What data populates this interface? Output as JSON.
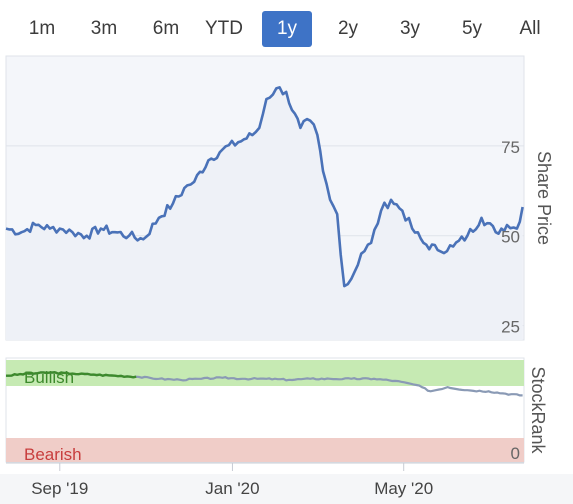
{
  "range_selector": {
    "buttons": [
      {
        "label": "1m",
        "active": false
      },
      {
        "label": "3m",
        "active": false
      },
      {
        "label": "6m",
        "active": false
      },
      {
        "label": "YTD",
        "active": false
      },
      {
        "label": "1y",
        "active": true
      },
      {
        "label": "2y",
        "active": false
      },
      {
        "label": "3y",
        "active": false
      },
      {
        "label": "5y",
        "active": false
      },
      {
        "label": "All",
        "active": false
      }
    ]
  },
  "colors": {
    "line": "#4a72b8",
    "panel_fill": "#f4f6fa",
    "grid": "#dfe3ea",
    "bullish_band": "#c6eab3",
    "bearish_band": "#f0cdc8",
    "bullish_text": "#3d8a2c",
    "bearish_text": "#c83e3e",
    "stockrank_line": "#8a9ab5",
    "active_button": "#3e73c6"
  },
  "chart_data": {
    "type": "line",
    "price_panel": {
      "ylabel": "Share Price",
      "yticks": [
        25,
        50,
        75
      ],
      "ylim": [
        21,
        100
      ],
      "x": [
        "2019-07-25",
        "2019-08-05",
        "2019-08-15",
        "2019-08-25",
        "2019-09-01",
        "2019-09-10",
        "2019-09-20",
        "2019-09-30",
        "2019-10-10",
        "2019-10-20",
        "2019-10-30",
        "2019-11-10",
        "2019-11-20",
        "2019-11-30",
        "2019-12-05",
        "2019-12-15",
        "2019-12-25",
        "2020-01-05",
        "2020-01-15",
        "2020-01-20",
        "2020-01-25",
        "2020-02-01",
        "2020-02-08",
        "2020-02-12",
        "2020-02-18",
        "2020-02-25",
        "2020-03-01",
        "2020-03-05",
        "2020-03-10",
        "2020-03-15",
        "2020-03-20",
        "2020-03-25",
        "2020-04-01",
        "2020-04-08",
        "2020-04-15",
        "2020-04-22",
        "2020-04-30",
        "2020-05-07",
        "2020-05-15",
        "2020-05-25",
        "2020-06-05",
        "2020-06-15",
        "2020-06-25",
        "2020-07-05",
        "2020-07-13",
        "2020-07-20",
        "2020-07-24"
      ],
      "values": [
        52,
        51,
        53,
        52,
        52,
        51,
        50,
        52,
        51,
        50,
        49,
        55,
        59,
        64,
        65,
        71,
        74,
        76,
        78,
        80,
        88,
        91,
        90,
        85,
        80,
        82,
        78,
        68,
        60,
        56,
        36,
        38,
        45,
        48,
        57,
        60,
        57,
        52,
        48,
        46,
        47,
        50,
        55,
        51,
        53,
        52,
        58
      ]
    },
    "stockrank_panel": {
      "ylabel": "StockRank",
      "band_labels": {
        "top": "Bullish",
        "bottom": "Bearish"
      },
      "ytick": 0,
      "ylim": [
        0,
        100
      ],
      "x": [
        "2019-07-25",
        "2019-08-10",
        "2019-08-25",
        "2019-09-10",
        "2019-09-25",
        "2019-10-10",
        "2019-10-25",
        "2019-11-10",
        "2019-11-25",
        "2019-12-10",
        "2019-12-25",
        "2020-01-10",
        "2020-01-25",
        "2020-02-10",
        "2020-02-25",
        "2020-03-10",
        "2020-03-25",
        "2020-04-10",
        "2020-04-25",
        "2020-05-10",
        "2020-05-20",
        "2020-06-01",
        "2020-06-15",
        "2020-06-30",
        "2020-07-10",
        "2020-07-24"
      ],
      "values": [
        83,
        85,
        86,
        85,
        84,
        83,
        82,
        80,
        79,
        80,
        81,
        80,
        80,
        79,
        80,
        80,
        80,
        80,
        78,
        74,
        68,
        72,
        69,
        68,
        66,
        64
      ],
      "bullish_until": "2019-10-25"
    },
    "xaxis": {
      "ticks": [
        "Sep '19",
        "Jan '20",
        "May '20"
      ],
      "tick_dates": [
        "2019-09-01",
        "2020-01-01",
        "2020-05-01"
      ],
      "range": [
        "2019-07-25",
        "2020-07-25"
      ]
    }
  }
}
